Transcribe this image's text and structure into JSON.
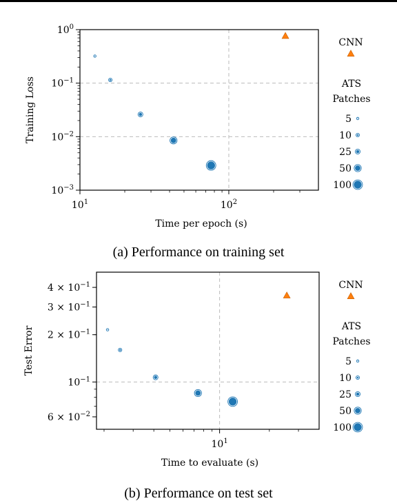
{
  "colors": {
    "ats": "#1f77b4",
    "cnn": "#ff7f0e",
    "grid": "#bbbbbb"
  },
  "legend": {
    "cnn_label": "CNN",
    "ats_title_line1": "ATS",
    "ats_title_line2": "Patches",
    "ats_sizes": [
      "5",
      "10",
      "25",
      "50",
      "100"
    ]
  },
  "captions": {
    "a": "(a) Performance on training set",
    "b": "(b) Performance on test set"
  },
  "chart_data": [
    {
      "type": "scatter",
      "xscale": "log",
      "yscale": "log",
      "xlabel": "Time per epoch (s)",
      "ylabel": "Training Loss",
      "xlim": [
        10,
        400
      ],
      "ylim": [
        0.001,
        1.0
      ],
      "grid": "dashed at x=10^2, y=10^-1 and y=10^-2",
      "xticks": [
        {
          "value": 10,
          "base": "10",
          "exp": "1"
        },
        {
          "value": 100,
          "base": "10",
          "exp": "2"
        }
      ],
      "yticks": [
        {
          "value": 1.0,
          "base": "10",
          "exp": "0"
        },
        {
          "value": 0.1,
          "base": "10",
          "exp": "−1"
        },
        {
          "value": 0.01,
          "base": "10",
          "exp": "−2"
        },
        {
          "value": 0.001,
          "base": "10",
          "exp": "−3"
        }
      ],
      "series": [
        {
          "name": "ATS",
          "marker": "circle",
          "points": [
            {
              "patches": "5",
              "x": 12.6,
              "y": 0.32
            },
            {
              "patches": "10",
              "x": 16.0,
              "y": 0.115
            },
            {
              "patches": "25",
              "x": 25.5,
              "y": 0.026
            },
            {
              "patches": "50",
              "x": 42.5,
              "y": 0.0085
            },
            {
              "patches": "100",
              "x": 76.0,
              "y": 0.0029
            }
          ]
        },
        {
          "name": "CNN",
          "marker": "triangle",
          "points": [
            {
              "x": 240,
              "y": 0.76
            }
          ]
        }
      ]
    },
    {
      "type": "scatter",
      "xscale": "log",
      "yscale": "log",
      "xlabel": "Time to evaluate (s)",
      "ylabel": "Test Error",
      "xlim": [
        1.8,
        40
      ],
      "ylim": [
        0.05,
        0.5
      ],
      "grid": "dashed at x=10^1, y=10^-1",
      "xticks": [
        {
          "value": 10,
          "base": "10",
          "exp": "1"
        }
      ],
      "yticks": [
        {
          "value": 0.4,
          "base": "4 × 10",
          "exp": "−1"
        },
        {
          "value": 0.3,
          "base": "3 × 10",
          "exp": "−1"
        },
        {
          "value": 0.2,
          "base": "2 × 10",
          "exp": "−1"
        },
        {
          "value": 0.1,
          "base": "10",
          "exp": "−1"
        },
        {
          "value": 0.06,
          "base": "6 × 10",
          "exp": "−2"
        }
      ],
      "series": [
        {
          "name": "ATS",
          "marker": "circle",
          "points": [
            {
              "patches": "5",
              "x": 2.1,
              "y": 0.215
            },
            {
              "patches": "10",
              "x": 2.5,
              "y": 0.16
            },
            {
              "patches": "25",
              "x": 4.1,
              "y": 0.107
            },
            {
              "patches": "50",
              "x": 7.4,
              "y": 0.085
            },
            {
              "patches": "100",
              "x": 12.0,
              "y": 0.075
            }
          ]
        },
        {
          "name": "CNN",
          "marker": "triangle",
          "points": [
            {
              "x": 25.5,
              "y": 0.355
            }
          ]
        }
      ]
    }
  ]
}
